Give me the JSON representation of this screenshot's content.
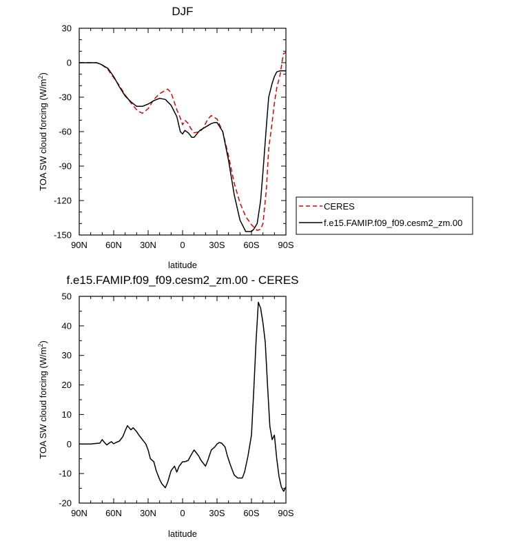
{
  "chart_data": [
    {
      "type": "line",
      "title": "DJF",
      "xlabel": "latitude",
      "ylabel_main": "TOA SW cloud forcing (W/m",
      "ylabel_sup": "2",
      "ylabel_end": ")",
      "xlim": [
        90,
        -90
      ],
      "ylim": [
        -150,
        30
      ],
      "xticks": [
        90,
        60,
        30,
        0,
        -30,
        -60,
        -90
      ],
      "xtick_labels": [
        "90N",
        "60N",
        "30N",
        "0",
        "30S",
        "60S",
        "90S"
      ],
      "yticks": [
        30,
        0,
        -30,
        -60,
        -90,
        -120,
        -150
      ],
      "ytick_labels": [
        "30",
        "0",
        "-30",
        "-60",
        "-90",
        "-120",
        "-150"
      ],
      "legend": "right, outside plot",
      "series": [
        {
          "name": "CERES",
          "color": "#dd0000",
          "style": "dashed",
          "x": [
            90,
            85,
            80,
            75,
            72,
            70,
            65,
            60,
            55,
            50,
            45,
            40,
            37,
            35,
            30,
            25,
            20,
            15,
            13,
            10,
            5,
            2,
            0,
            -2,
            -5,
            -7,
            -10,
            -15,
            -18,
            -20,
            -22,
            -25,
            -30,
            -35,
            -40,
            -45,
            -50,
            -55,
            -60,
            -63,
            -65,
            -68,
            -70,
            -73,
            -75,
            -78,
            -80,
            -82,
            -85,
            -87,
            -88,
            -90
          ],
          "y": [
            0,
            0,
            0,
            0,
            -1,
            -2,
            -6,
            -13,
            -20,
            -28,
            -35,
            -41,
            -43,
            -44,
            -40,
            -32,
            -27,
            -24,
            -23,
            -26,
            -41,
            -48,
            -54,
            -50,
            -53,
            -57,
            -61,
            -60,
            -57,
            -53,
            -49,
            -46,
            -49,
            -60,
            -81,
            -105,
            -122,
            -134,
            -141,
            -144,
            -146,
            -145,
            -140,
            -110,
            -75,
            -52,
            -35,
            -22,
            -10,
            3,
            8,
            9
          ]
        },
        {
          "name": "f.e15.FAMIP.f09_f09.cesm2_zm.00",
          "color": "#000000",
          "style": "solid",
          "x": [
            90,
            85,
            80,
            75,
            72,
            70,
            65,
            60,
            55,
            50,
            45,
            40,
            35,
            30,
            25,
            20,
            15,
            10,
            5,
            2,
            0,
            -2,
            -5,
            -8,
            -10,
            -15,
            -20,
            -25,
            -28,
            -30,
            -35,
            -40,
            -45,
            -50,
            -55,
            -60,
            -62,
            -65,
            -68,
            -70,
            -73,
            -75,
            -78,
            -80,
            -82,
            -85,
            -88,
            -90
          ],
          "y": [
            0,
            0,
            0,
            0,
            -1,
            -2,
            -5,
            -12,
            -21,
            -29,
            -34,
            -38,
            -38,
            -36,
            -33,
            -31,
            -32,
            -37,
            -47,
            -60,
            -62,
            -59,
            -61,
            -65,
            -65,
            -59,
            -56,
            -53,
            -52,
            -52,
            -60,
            -85,
            -115,
            -137,
            -147,
            -147,
            -145,
            -140,
            -120,
            -95,
            -55,
            -30,
            -18,
            -12,
            -8,
            -7,
            -7,
            -7
          ]
        }
      ]
    },
    {
      "type": "line",
      "title": "f.e15.FAMIP.f09_f09.cesm2_zm.00 - CERES",
      "xlabel": "latitude",
      "ylabel_main": "TOA SW cloud forcing (W/m",
      "ylabel_sup": "2",
      "ylabel_end": ")",
      "xlim": [
        90,
        -90
      ],
      "ylim": [
        -20,
        50
      ],
      "xticks": [
        90,
        60,
        30,
        0,
        -30,
        -60,
        -90
      ],
      "xtick_labels": [
        "90N",
        "60N",
        "30N",
        "0",
        "30S",
        "60S",
        "90S"
      ],
      "yticks": [
        50,
        40,
        30,
        20,
        10,
        0,
        -10,
        -20
      ],
      "ytick_labels": [
        "50",
        "40",
        "30",
        "20",
        "10",
        "0",
        "-10",
        "-20"
      ],
      "grid": false,
      "series": [
        {
          "name": "",
          "color": "#000000",
          "style": "solid",
          "x": [
            90,
            80,
            75,
            72,
            70,
            68,
            66,
            64,
            62,
            60,
            58,
            55,
            52,
            50,
            48,
            45,
            43,
            40,
            38,
            35,
            32,
            30,
            28,
            25,
            23,
            20,
            18,
            15,
            13,
            10,
            7,
            5,
            3,
            0,
            -2,
            -5,
            -7,
            -10,
            -12,
            -14,
            -16,
            -18,
            -20,
            -22,
            -25,
            -28,
            -30,
            -32,
            -34,
            -37,
            -39,
            -42,
            -45,
            -48,
            -52,
            -54,
            -57,
            -60,
            -62,
            -64,
            -66,
            -68,
            -70,
            -72,
            -74,
            -76,
            -78,
            -80,
            -82,
            -84,
            -86,
            -88,
            -90
          ],
          "y": [
            0,
            0,
            0.2,
            0.3,
            1.5,
            0.5,
            -0.3,
            0.3,
            0.8,
            0.1,
            0.5,
            1,
            2.5,
            4.5,
            6.2,
            4.8,
            5.5,
            4.2,
            3,
            1.5,
            0,
            -2,
            -5,
            -6,
            -9,
            -12,
            -13.5,
            -14.8,
            -13,
            -9,
            -7.5,
            -9.5,
            -7.5,
            -6,
            -6,
            -5.5,
            -4,
            -2,
            -3,
            -4,
            -5.5,
            -6.5,
            -7.5,
            -5.5,
            -2,
            -1,
            0,
            0.5,
            0.3,
            -1,
            -4,
            -7.5,
            -10.5,
            -11.5,
            -11.5,
            -9.5,
            -4,
            3,
            18,
            35,
            48,
            46,
            41,
            34.5,
            20,
            6,
            1.5,
            3,
            -5,
            -11,
            -14.5,
            -16,
            -14.5
          ]
        }
      ]
    }
  ]
}
